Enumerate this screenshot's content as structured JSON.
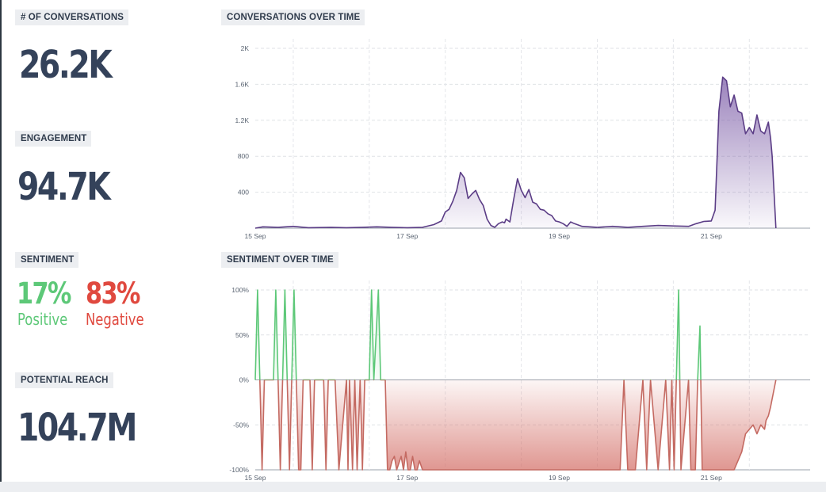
{
  "colors": {
    "positive": "#5dc878",
    "negative": "#e0493f",
    "conversations_line": "#5b3d86",
    "sentiment_positive_line": "#5dc878",
    "sentiment_negative_line": "#c46a62"
  },
  "kpis": {
    "conversations": {
      "label": "# OF CONVERSATIONS",
      "value": "26.2K"
    },
    "engagement": {
      "label": "ENGAGEMENT",
      "value": "94.7K"
    },
    "sentiment": {
      "label": "SENTIMENT",
      "positive_value": "17%",
      "positive_label": "Positive",
      "negative_value": "83%",
      "negative_label": "Negative"
    },
    "reach": {
      "label": "POTENTIAL REACH",
      "value": "104.7M"
    }
  },
  "chart_data": [
    {
      "type": "area",
      "title": "CONVERSATIONS OVER TIME",
      "x_unit": "days",
      "xlim": [
        0,
        7.3
      ],
      "ylim": [
        0,
        2000
      ],
      "y_ticks": [
        0,
        400,
        800,
        1200,
        1600,
        2000
      ],
      "y_tick_labels": [
        "",
        "400",
        "800",
        "1.2K",
        "1.6K",
        "2K"
      ],
      "x_ticks": [
        0,
        2,
        4,
        6
      ],
      "x_tick_labels": [
        "15 Sep",
        "17 Sep",
        "19 Sep",
        "21 Sep"
      ],
      "grid": true,
      "series": [
        {
          "x": [
            0,
            0.1,
            0.3,
            0.5,
            0.7,
            1,
            1.2,
            1.4,
            1.6,
            1.8,
            2,
            2.2,
            2.35,
            2.45,
            2.5,
            2.55,
            2.6,
            2.65,
            2.7,
            2.75,
            2.8,
            2.85,
            2.9,
            2.95,
            3,
            3.05,
            3.1,
            3.15,
            3.2,
            3.25,
            3.28,
            3.3,
            3.35,
            3.4,
            3.45,
            3.5,
            3.55,
            3.6,
            3.65,
            3.7,
            3.75,
            3.8,
            3.85,
            3.9,
            3.95,
            4,
            4.05,
            4.1,
            4.15,
            4.2,
            4.3,
            4.5,
            4.7,
            4.9,
            5.1,
            5.3,
            5.5,
            5.7,
            5.8,
            5.9,
            6.0,
            6.05,
            6.1,
            6.15,
            6.2,
            6.25,
            6.3,
            6.35,
            6.4,
            6.45,
            6.5,
            6.55,
            6.6,
            6.65,
            6.7,
            6.75,
            6.78,
            6.8,
            6.85
          ],
          "y": [
            0,
            15,
            10,
            20,
            5,
            10,
            5,
            10,
            15,
            10,
            5,
            10,
            40,
            80,
            180,
            210,
            300,
            420,
            620,
            560,
            330,
            380,
            420,
            320,
            250,
            100,
            30,
            10,
            50,
            70,
            60,
            100,
            70,
            320,
            550,
            420,
            340,
            430,
            290,
            270,
            210,
            200,
            160,
            140,
            80,
            70,
            50,
            20,
            70,
            50,
            20,
            10,
            20,
            10,
            20,
            30,
            25,
            20,
            50,
            75,
            80,
            200,
            1300,
            1680,
            1640,
            1350,
            1480,
            1300,
            1280,
            1050,
            1120,
            1050,
            1260,
            1080,
            1050,
            1180,
            1000,
            800,
            0
          ]
        }
      ]
    },
    {
      "type": "area",
      "title": "SENTIMENT OVER TIME",
      "x_unit": "days",
      "xlim": [
        0,
        7.3
      ],
      "ylim": [
        -100,
        100
      ],
      "y_ticks": [
        -100,
        -50,
        0,
        50,
        100
      ],
      "y_tick_labels": [
        "-100%",
        "-50%",
        "0%",
        "50%",
        "100%"
      ],
      "x_ticks": [
        0,
        2,
        4,
        6
      ],
      "x_tick_labels": [
        "15 Sep",
        "17 Sep",
        "19 Sep",
        "21 Sep"
      ],
      "grid": true,
      "series": [
        {
          "x": [
            0,
            0.03,
            0.06,
            0.09,
            0.12,
            0.24,
            0.27,
            0.3,
            0.33,
            0.36,
            0.39,
            0.42,
            0.45,
            0.48,
            0.51,
            0.54,
            0.57,
            0.6,
            0.63,
            0.66,
            0.72,
            0.75,
            0.78,
            0.9,
            0.93,
            0.96,
            1.05,
            1.1,
            1.2,
            1.22,
            1.24,
            1.28,
            1.31,
            1.34,
            1.38,
            1.41,
            1.44,
            1.5,
            1.53,
            1.56,
            1.62,
            1.65,
            1.68,
            1.71,
            1.74,
            1.77,
            1.8,
            1.83,
            1.86,
            1.92,
            1.95,
            1.98,
            2.01,
            2.04,
            2.07,
            2.1,
            2.13,
            2.16,
            2.2,
            2.4,
            2.6,
            2.8,
            2.9,
            3.0,
            3.1,
            3.2,
            3.3,
            3.5,
            3.7,
            3.9,
            4.1,
            4.3,
            4.5,
            4.7,
            4.8,
            4.85,
            4.9,
            5.0,
            5.1,
            5.15,
            5.2,
            5.3,
            5.4,
            5.45,
            5.48,
            5.51,
            5.54,
            5.57,
            5.6,
            5.7,
            5.73,
            5.76,
            5.79,
            5.82,
            5.85,
            5.88,
            5.91,
            5.94,
            5.97,
            6.0,
            6.1,
            6.2,
            6.3,
            6.4,
            6.45,
            6.5,
            6.55,
            6.6,
            6.65,
            6.7,
            6.72,
            6.75,
            6.78,
            6.85
          ],
          "y": [
            0,
            100,
            0,
            -100,
            0,
            0,
            100,
            0,
            -100,
            0,
            100,
            0,
            -100,
            0,
            100,
            0,
            -100,
            -100,
            0,
            0,
            0,
            -100,
            0,
            0,
            -100,
            0,
            0,
            -100,
            0,
            -100,
            0,
            -100,
            0,
            -100,
            0,
            -100,
            0,
            0,
            100,
            0,
            100,
            0,
            0,
            0,
            -100,
            -100,
            -90,
            -85,
            -100,
            -85,
            -100,
            -80,
            -100,
            -100,
            -85,
            -100,
            -100,
            -90,
            -100,
            -100,
            -100,
            -100,
            -100,
            -100,
            -100,
            -100,
            -100,
            -100,
            -100,
            -100,
            -100,
            -100,
            -100,
            -100,
            -100,
            0,
            -100,
            -100,
            0,
            -100,
            0,
            -100,
            0,
            -100,
            0,
            -100,
            0,
            100,
            -100,
            0,
            -100,
            -100,
            -100,
            0,
            60,
            -100,
            -100,
            -100,
            -100,
            -100,
            -100,
            -100,
            -100,
            -80,
            -60,
            -55,
            -50,
            -60,
            -50,
            -55,
            -45,
            -40,
            -30,
            0
          ]
        }
      ]
    }
  ]
}
